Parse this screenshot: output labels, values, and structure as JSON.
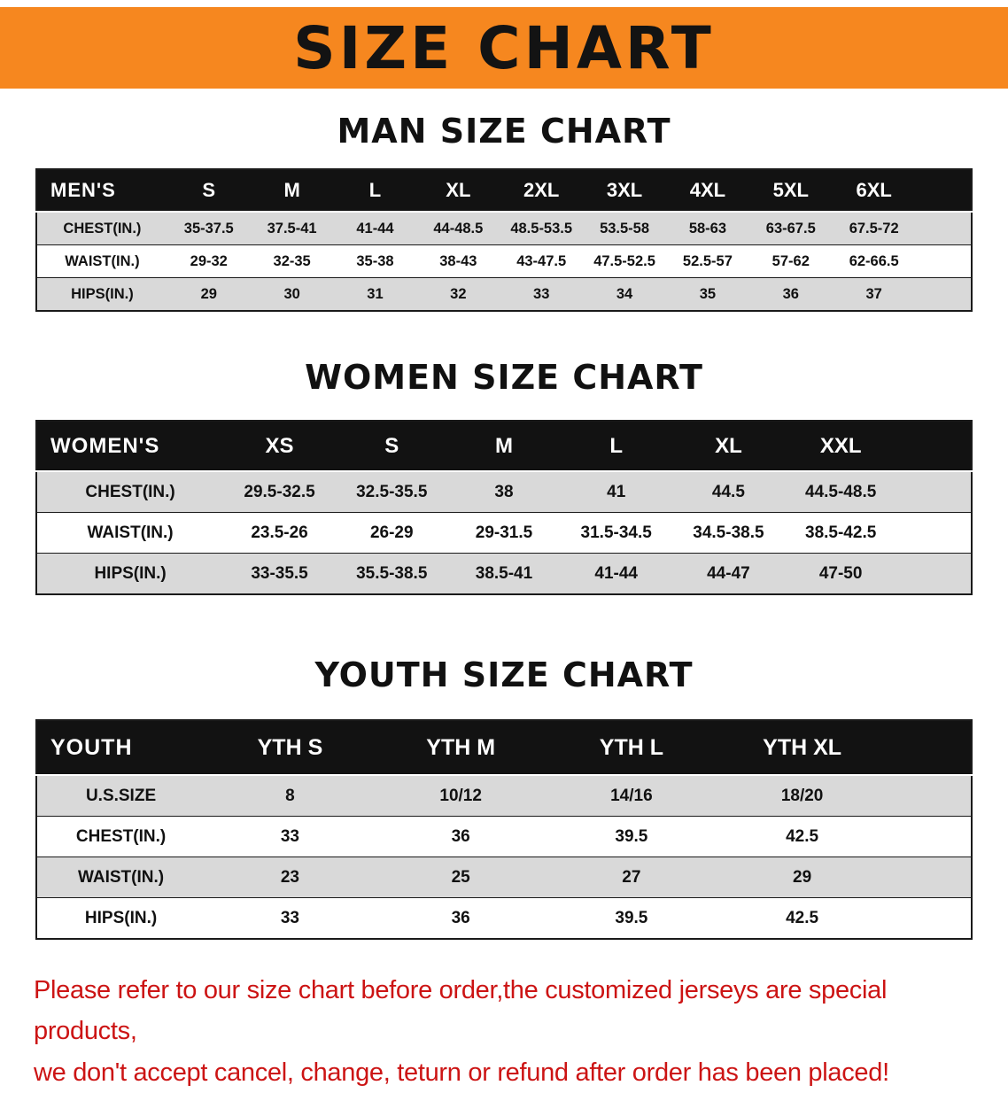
{
  "banner": {
    "title": "SIZE CHART"
  },
  "colors": {
    "banner_bg": "#F6871F",
    "header_bg": "#121212",
    "row_alt": "#d9d9d9",
    "footer_text": "#cc1414"
  },
  "chart_data": [
    {
      "type": "table",
      "title": "MAN SIZE CHART",
      "columns": [
        "MEN'S",
        "S",
        "M",
        "L",
        "XL",
        "2XL",
        "3XL",
        "4XL",
        "5XL",
        "6XL"
      ],
      "rows": [
        [
          "CHEST(IN.)",
          "35-37.5",
          "37.5-41",
          "41-44",
          "44-48.5",
          "48.5-53.5",
          "53.5-58",
          "58-63",
          "63-67.5",
          "67.5-72"
        ],
        [
          "WAIST(IN.)",
          "29-32",
          "32-35",
          "35-38",
          "38-43",
          "43-47.5",
          "47.5-52.5",
          "52.5-57",
          "57-62",
          "62-66.5"
        ],
        [
          "HIPS(IN.)",
          "29",
          "30",
          "31",
          "32",
          "33",
          "34",
          "35",
          "36",
          "37"
        ]
      ]
    },
    {
      "type": "table",
      "title": "WOMEN SIZE CHART",
      "columns": [
        "WOMEN'S",
        "XS",
        "S",
        "M",
        "L",
        "XL",
        "XXL"
      ],
      "rows": [
        [
          "CHEST(IN.)",
          "29.5-32.5",
          "32.5-35.5",
          "38",
          "41",
          "44.5",
          "44.5-48.5"
        ],
        [
          "WAIST(IN.)",
          "23.5-26",
          "26-29",
          "29-31.5",
          "31.5-34.5",
          "34.5-38.5",
          "38.5-42.5"
        ],
        [
          "HIPS(IN.)",
          "33-35.5",
          "35.5-38.5",
          "38.5-41",
          "41-44",
          "44-47",
          "47-50"
        ]
      ]
    },
    {
      "type": "table",
      "title": "YOUTH SIZE CHART",
      "columns": [
        "YOUTH",
        "YTH S",
        "YTH M",
        "YTH L",
        "YTH XL"
      ],
      "rows": [
        [
          "U.S.SIZE",
          "8",
          "10/12",
          "14/16",
          "18/20"
        ],
        [
          "CHEST(IN.)",
          "33",
          "36",
          "39.5",
          "42.5"
        ],
        [
          "WAIST(IN.)",
          "23",
          "25",
          "27",
          "29"
        ],
        [
          "HIPS(IN.)",
          "33",
          "36",
          "39.5",
          "42.5"
        ]
      ]
    }
  ],
  "footer": {
    "line1": "Please refer to our size chart before order,the customized jerseys are special products,",
    "line2": "we don't accept cancel, change, teturn or refund after order has been placed!"
  }
}
